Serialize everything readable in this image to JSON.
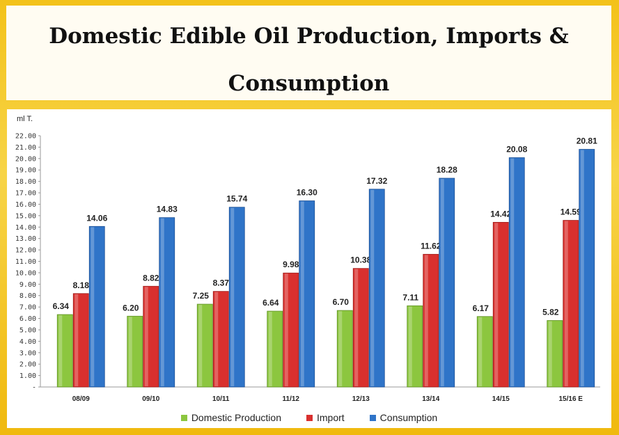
{
  "title_line1": "Domestic Edible Oil Production, Imports &",
  "title_line2": "Consumption",
  "colors": {
    "production": "#8cc63f",
    "import": "#d9302e",
    "consumption": "#2f74c8"
  },
  "chart_data": {
    "type": "bar",
    "title": "Domestic Edible Oil Production, Imports & Consumption",
    "ylabel": "ml T.",
    "xlabel": "",
    "ylim": [
      0,
      22
    ],
    "yticks": [
      "-",
      "1.00",
      "2.00",
      "3.00",
      "4.00",
      "5.00",
      "6.00",
      "7.00",
      "8.00",
      "9.00",
      "10.00",
      "11.00",
      "12.00",
      "13.00",
      "14.00",
      "15.00",
      "16.00",
      "17.00",
      "18.00",
      "19.00",
      "20.00",
      "21.00",
      "22.00"
    ],
    "categories": [
      "08/09",
      "09/10",
      "10/11",
      "11/12",
      "12/13",
      "13/14",
      "14/15",
      "15/16 E"
    ],
    "series": [
      {
        "name": "Domestic Production",
        "values": [
          6.34,
          6.2,
          7.25,
          6.64,
          6.7,
          7.11,
          6.17,
          5.82
        ],
        "labels": [
          "6.34",
          "6.20",
          "7.25",
          "6.64",
          "6.70",
          "7.11",
          "6.17",
          "5.82"
        ]
      },
      {
        "name": "Import",
        "values": [
          8.18,
          8.82,
          8.37,
          9.98,
          10.38,
          11.62,
          14.42,
          14.59
        ],
        "labels": [
          "8.18",
          "8.82",
          "8.37",
          "9.98",
          "10.38",
          "11.62",
          "14.42",
          "14.59"
        ]
      },
      {
        "name": "Consumption",
        "values": [
          14.06,
          14.83,
          15.74,
          16.3,
          17.32,
          18.28,
          20.08,
          20.81
        ],
        "labels": [
          "14.06",
          "14.83",
          "15.74",
          "16.30",
          "17.32",
          "18.28",
          "20.08",
          "20.81"
        ]
      }
    ],
    "legend_position": "bottom",
    "grid": false
  }
}
